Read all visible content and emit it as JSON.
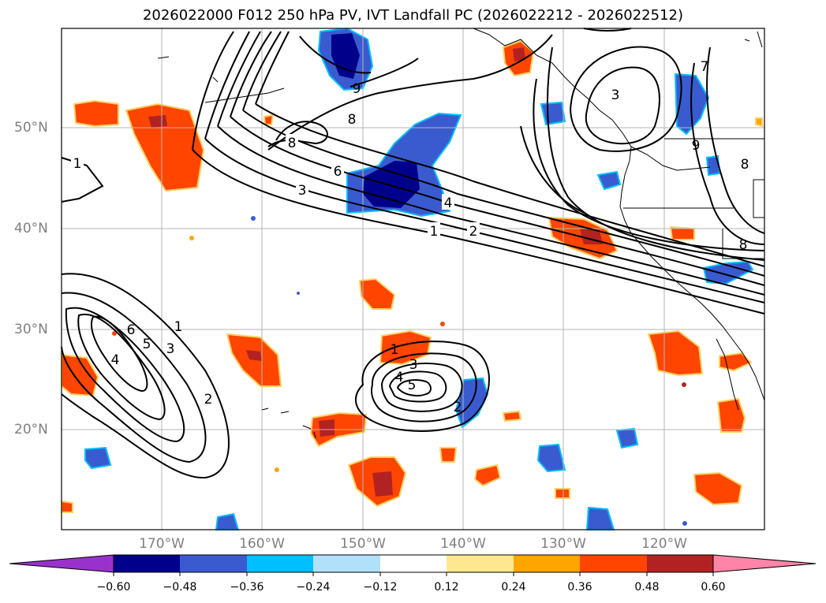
{
  "title": "2026022000 F012 250 hPa PV, IVT Landfall PC (2026022212 - 2026022512)",
  "axes": {
    "lat_ticks": [
      "50°N",
      "40°N",
      "30°N",
      "20°N"
    ],
    "lon_ticks": [
      "170°W",
      "160°W",
      "150°W",
      "140°W",
      "130°W",
      "120°W"
    ]
  },
  "colorbar": {
    "tick_labels": [
      "−0.60",
      "−0.48",
      "−0.36",
      "−0.24",
      "−0.12",
      "0.12",
      "0.24",
      "0.36",
      "0.48",
      "0.60"
    ],
    "colors": [
      "#9932cc",
      "#00008b",
      "#3a5bd0",
      "#00bfff",
      "#b0e0fa",
      "#ffffff",
      "#ffe78f",
      "#ffa500",
      "#ff4500",
      "#b22222",
      "#ff85a8"
    ]
  },
  "contour_labels": [
    {
      "text": "1"
    },
    {
      "text": "3"
    },
    {
      "text": "6"
    },
    {
      "text": "8"
    },
    {
      "text": "8"
    },
    {
      "text": "9"
    },
    {
      "text": "4"
    },
    {
      "text": "1"
    },
    {
      "text": "2"
    },
    {
      "text": "3"
    },
    {
      "text": "7"
    },
    {
      "text": "9"
    },
    {
      "text": "8"
    },
    {
      "text": "8"
    },
    {
      "text": "6"
    },
    {
      "text": "5"
    },
    {
      "text": "3"
    },
    {
      "text": "4"
    },
    {
      "text": "1"
    },
    {
      "text": "2"
    },
    {
      "text": "1"
    },
    {
      "text": "3"
    },
    {
      "text": "4"
    },
    {
      "text": "5"
    },
    {
      "text": "2"
    }
  ]
}
